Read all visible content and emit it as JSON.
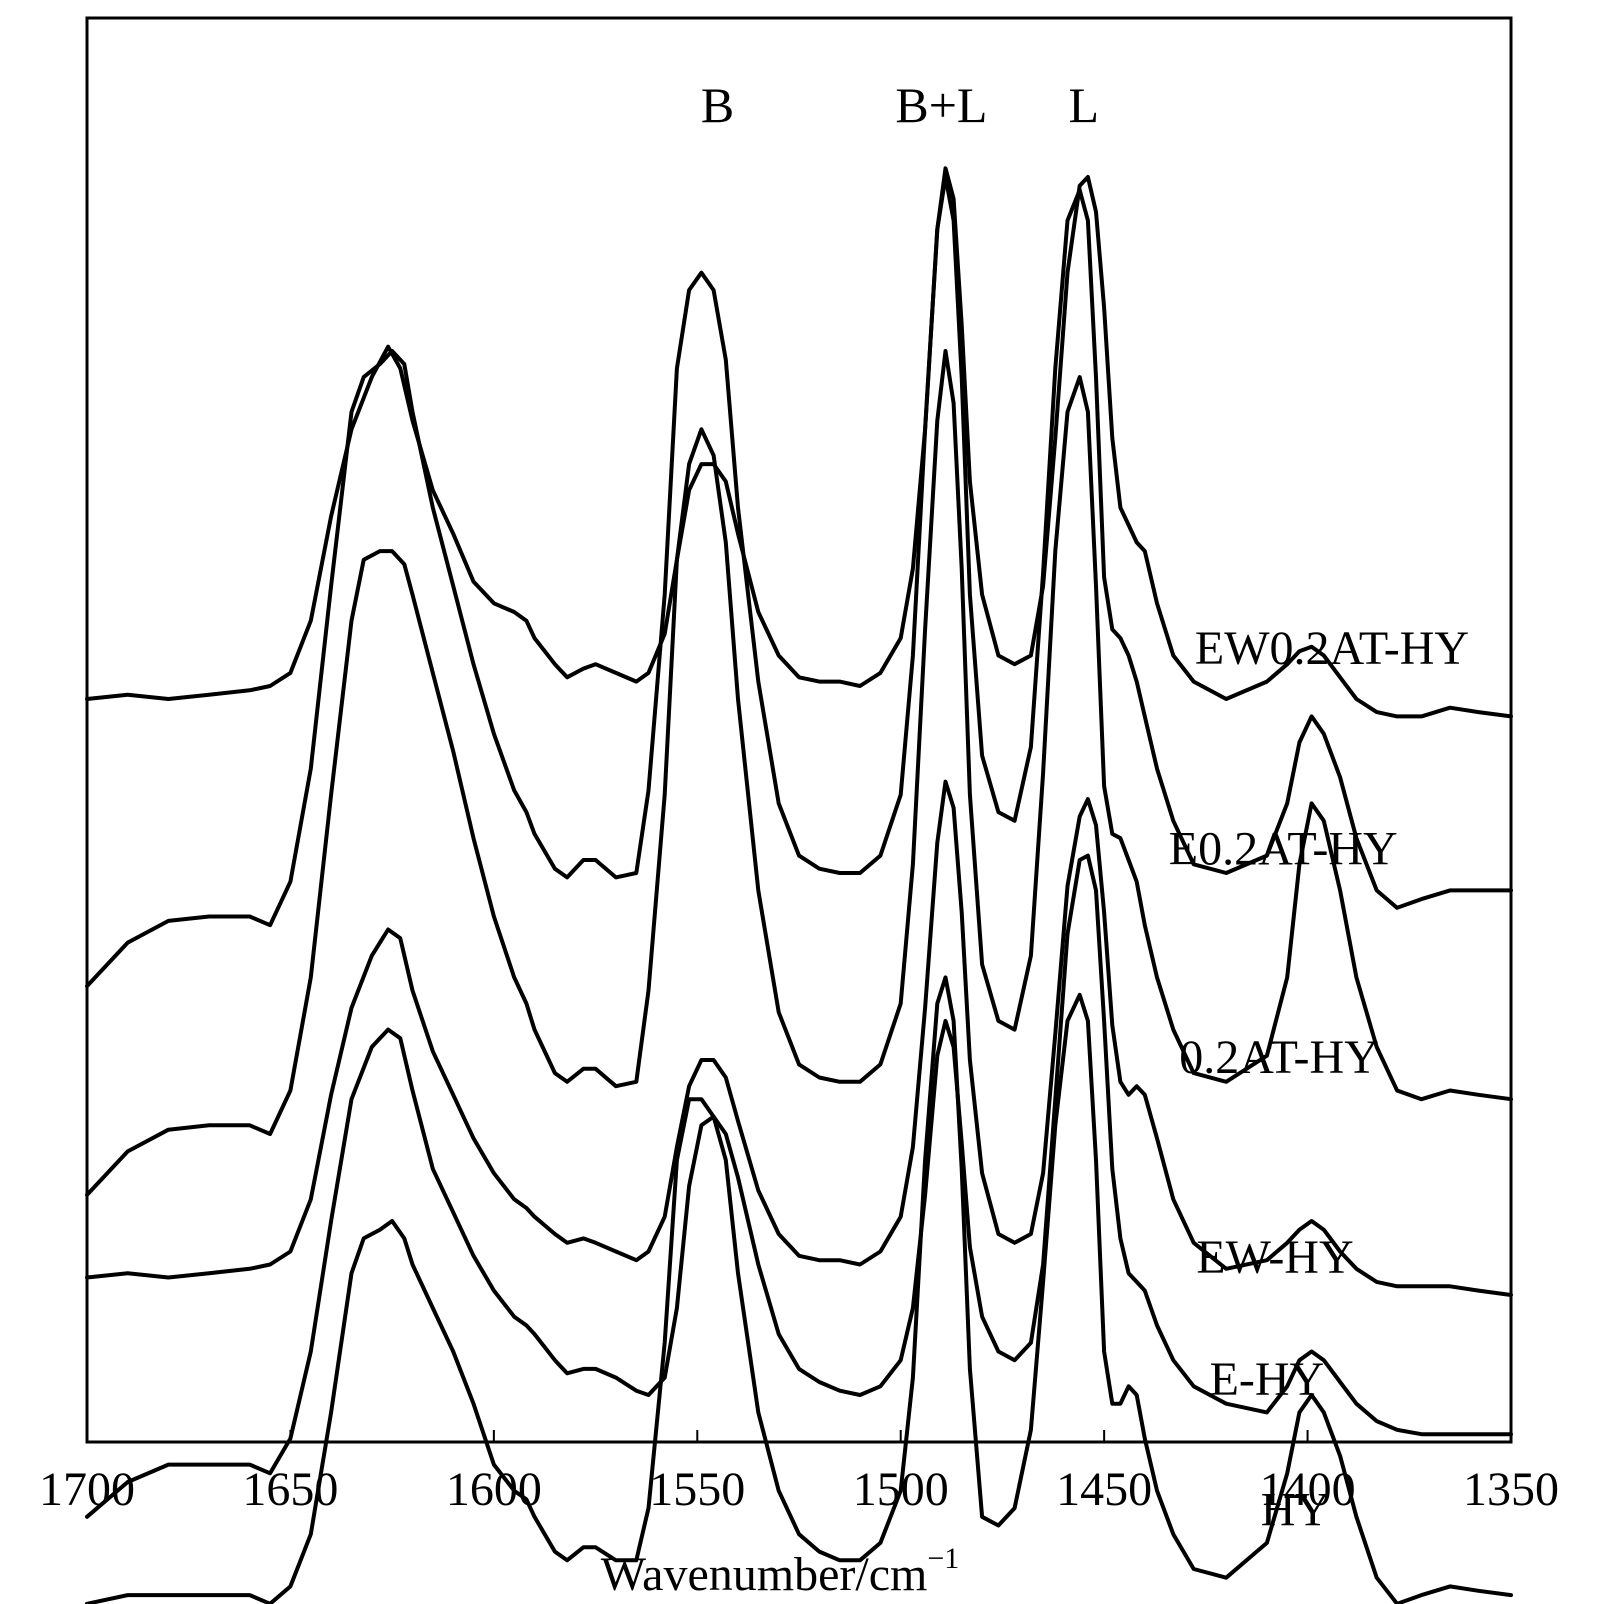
{
  "chart_data": {
    "type": "line",
    "xlabel": "Wavenumber/cm",
    "xlabel_superscript": "−1",
    "xlim": [
      1700,
      1350
    ],
    "x_reversed": true,
    "x_ticks": [
      1700,
      1650,
      1600,
      1550,
      1500,
      1450,
      1400,
      1350
    ],
    "ylabel": "",
    "y_axis_shown": false,
    "grid": false,
    "legend": "none",
    "line_color": "#000000",
    "y_units": "relative absorbance (stacked, arbitrary offsets)",
    "peak_labels": [
      {
        "text": "B",
        "x": 1545
      },
      {
        "text": "B+L",
        "x": 1490
      },
      {
        "text": "L",
        "x": 1455
      }
    ],
    "series": [
      {
        "name": "EW0.2AT-HY",
        "x": [
          1700,
          1690,
          1680,
          1670,
          1660,
          1655,
          1650,
          1645,
          1640,
          1635,
          1630,
          1626,
          1623,
          1620,
          1615,
          1610,
          1605,
          1600,
          1595,
          1592,
          1590,
          1585,
          1582,
          1578,
          1575,
          1570,
          1565,
          1562,
          1558,
          1555,
          1552,
          1549,
          1546,
          1543,
          1540,
          1535,
          1530,
          1525,
          1520,
          1515,
          1510,
          1505,
          1500,
          1497,
          1494,
          1491,
          1489,
          1487,
          1485,
          1483,
          1480,
          1476,
          1472,
          1468,
          1465,
          1462,
          1459,
          1456,
          1454,
          1452,
          1450,
          1448,
          1446,
          1444,
          1442,
          1440,
          1437,
          1433,
          1428,
          1420,
          1410,
          1405,
          1402,
          1399,
          1396,
          1392,
          1388,
          1383,
          1378,
          1372,
          1365,
          1358,
          1350
        ],
        "y": [
          10,
          11,
          10,
          11,
          12,
          13,
          16,
          28,
          52,
          72,
          84,
          91,
          86,
          74,
          58,
          48,
          37,
          32,
          30,
          28,
          24,
          18,
          15,
          17,
          18,
          16,
          14,
          16,
          25,
          42,
          58,
          64,
          64,
          60,
          48,
          30,
          20,
          15,
          14,
          14,
          13,
          16,
          24,
          40,
          72,
          118,
          132,
          125,
          96,
          60,
          34,
          20,
          18,
          20,
          36,
          70,
          108,
          128,
          130,
          122,
          100,
          70,
          54,
          50,
          46,
          44,
          32,
          20,
          14,
          10,
          14,
          18,
          21,
          22,
          20,
          15,
          10,
          7,
          6,
          6,
          8,
          7,
          6
        ]
      },
      {
        "name": "E0.2AT-HY",
        "x": [
          1700,
          1690,
          1680,
          1670,
          1660,
          1655,
          1650,
          1645,
          1640,
          1635,
          1632,
          1628,
          1625,
          1622,
          1620,
          1615,
          1610,
          1605,
          1600,
          1595,
          1592,
          1590,
          1585,
          1582,
          1578,
          1575,
          1570,
          1565,
          1562,
          1558,
          1555,
          1552,
          1549,
          1546,
          1543,
          1540,
          1535,
          1530,
          1525,
          1520,
          1515,
          1510,
          1505,
          1500,
          1497,
          1494,
          1491,
          1489,
          1487,
          1485,
          1483,
          1480,
          1476,
          1472,
          1468,
          1465,
          1462,
          1459,
          1456,
          1454,
          1452,
          1450,
          1448,
          1446,
          1444,
          1442,
          1440,
          1437,
          1433,
          1428,
          1420,
          1410,
          1405,
          1402,
          1399,
          1396,
          1392,
          1388,
          1383,
          1378,
          1372,
          1365,
          1358,
          1350
        ],
        "y": [
          -10,
          0,
          5,
          6,
          6,
          4,
          14,
          40,
          82,
          122,
          130,
          133,
          136,
          133,
          122,
          100,
          82,
          64,
          48,
          35,
          30,
          25,
          17,
          15,
          19,
          19,
          15,
          16,
          35,
          80,
          132,
          150,
          154,
          150,
          134,
          100,
          60,
          32,
          20,
          17,
          16,
          16,
          20,
          34,
          66,
          118,
          164,
          176,
          166,
          130,
          80,
          43,
          30,
          28,
          45,
          85,
          132,
          166,
          173,
          166,
          130,
          84,
          72,
          70,
          66,
          60,
          52,
          40,
          28,
          18,
          16,
          20,
          32,
          46,
          52,
          48,
          38,
          24,
          12,
          8,
          10,
          12,
          12,
          12
        ]
      },
      {
        "name": "0.2AT-HY",
        "x": [
          1700,
          1690,
          1680,
          1670,
          1660,
          1655,
          1650,
          1645,
          1640,
          1635,
          1632,
          1628,
          1625,
          1622,
          1620,
          1615,
          1610,
          1605,
          1600,
          1595,
          1592,
          1590,
          1585,
          1582,
          1578,
          1575,
          1570,
          1565,
          1562,
          1558,
          1555,
          1552,
          1549,
          1546,
          1543,
          1540,
          1535,
          1530,
          1525,
          1520,
          1515,
          1510,
          1505,
          1500,
          1497,
          1494,
          1491,
          1489,
          1487,
          1485,
          1483,
          1480,
          1476,
          1472,
          1468,
          1465,
          1462,
          1459,
          1456,
          1454,
          1452,
          1450,
          1448,
          1446,
          1444,
          1442,
          1440,
          1437,
          1433,
          1428,
          1420,
          1410,
          1405,
          1402,
          1399,
          1396,
          1392,
          1388,
          1383,
          1378,
          1372,
          1365,
          1358,
          1350
        ],
        "y": [
          -10,
          0,
          5,
          6,
          6,
          4,
          14,
          40,
          82,
          122,
          136,
          138,
          138,
          135,
          128,
          110,
          92,
          72,
          54,
          40,
          34,
          28,
          18,
          16,
          19,
          19,
          15,
          16,
          37,
          82,
          136,
          158,
          166,
          160,
          140,
          104,
          60,
          32,
          20,
          17,
          16,
          16,
          20,
          34,
          66,
          120,
          168,
          184,
          172,
          134,
          82,
          43,
          30,
          28,
          45,
          87,
          138,
          170,
          178,
          170,
          130,
          84,
          73,
          72,
          67,
          62,
          52,
          40,
          28,
          18,
          16,
          22,
          40,
          66,
          80,
          76,
          60,
          40,
          24,
          14,
          12,
          14,
          13,
          12
        ]
      },
      {
        "name": "EW-HY",
        "x": [
          1700,
          1690,
          1680,
          1670,
          1660,
          1655,
          1650,
          1645,
          1640,
          1635,
          1630,
          1626,
          1623,
          1620,
          1615,
          1610,
          1605,
          1600,
          1595,
          1592,
          1590,
          1585,
          1582,
          1578,
          1575,
          1570,
          1565,
          1562,
          1558,
          1555,
          1552,
          1549,
          1546,
          1543,
          1540,
          1535,
          1530,
          1525,
          1520,
          1515,
          1510,
          1505,
          1500,
          1497,
          1494,
          1491,
          1489,
          1487,
          1485,
          1483,
          1480,
          1476,
          1472,
          1468,
          1465,
          1462,
          1459,
          1456,
          1454,
          1452,
          1450,
          1448,
          1446,
          1444,
          1442,
          1440,
          1437,
          1433,
          1428,
          1420,
          1410,
          1405,
          1402,
          1399,
          1396,
          1392,
          1388,
          1383,
          1378,
          1372,
          1365,
          1358,
          1350
        ],
        "y": [
          10,
          11,
          10,
          11,
          12,
          13,
          16,
          28,
          52,
          72,
          84,
          90,
          88,
          76,
          62,
          52,
          42,
          34,
          28,
          26,
          24,
          20,
          18,
          19,
          18,
          16,
          14,
          16,
          24,
          40,
          54,
          60,
          60,
          56,
          46,
          30,
          20,
          15,
          14,
          14,
          13,
          16,
          24,
          40,
          72,
          110,
          124,
          118,
          94,
          60,
          34,
          20,
          18,
          20,
          34,
          66,
          100,
          116,
          120,
          114,
          94,
          68,
          55,
          52,
          54,
          52,
          42,
          28,
          18,
          12,
          14,
          18,
          21,
          23,
          21,
          16,
          12,
          9,
          8,
          8,
          8,
          7,
          6
        ]
      },
      {
        "name": "E-HY",
        "x": [
          1700,
          1690,
          1680,
          1670,
          1660,
          1655,
          1650,
          1645,
          1640,
          1635,
          1630,
          1626,
          1623,
          1620,
          1615,
          1610,
          1605,
          1600,
          1595,
          1592,
          1590,
          1585,
          1582,
          1578,
          1575,
          1570,
          1565,
          1562,
          1558,
          1555,
          1552,
          1549,
          1546,
          1543,
          1540,
          1535,
          1530,
          1525,
          1520,
          1515,
          1510,
          1505,
          1500,
          1497,
          1494,
          1491,
          1489,
          1487,
          1485,
          1483,
          1480,
          1476,
          1472,
          1468,
          1465,
          1462,
          1459,
          1456,
          1454,
          1452,
          1450,
          1448,
          1446,
          1444,
          1442,
          1440,
          1437,
          1433,
          1428,
          1420,
          1410,
          1405,
          1402,
          1399,
          1396,
          1392,
          1388,
          1383,
          1378,
          1372,
          1365,
          1358,
          1350
        ],
        "y": [
          -14,
          -6,
          -2,
          -2,
          -2,
          -4,
          4,
          24,
          54,
          82,
          94,
          98,
          96,
          84,
          66,
          56,
          46,
          38,
          32,
          30,
          28,
          22,
          19,
          20,
          20,
          18,
          15,
          14,
          18,
          34,
          62,
          76,
          78,
          74,
          64,
          44,
          28,
          20,
          17,
          15,
          14,
          16,
          22,
          34,
          60,
          92,
          100,
          94,
          72,
          48,
          32,
          24,
          22,
          26,
          44,
          82,
          120,
          137,
          138,
          130,
          100,
          66,
          50,
          42,
          40,
          38,
          30,
          22,
          16,
          12,
          10,
          16,
          22,
          24,
          22,
          17,
          12,
          8,
          6,
          5,
          5,
          5,
          5
        ]
      },
      {
        "name": "HY",
        "x": [
          1700,
          1690,
          1680,
          1670,
          1660,
          1655,
          1650,
          1645,
          1640,
          1635,
          1632,
          1628,
          1625,
          1622,
          1620,
          1615,
          1610,
          1605,
          1600,
          1595,
          1592,
          1590,
          1585,
          1582,
          1578,
          1575,
          1570,
          1565,
          1562,
          1558,
          1555,
          1552,
          1549,
          1546,
          1543,
          1540,
          1535,
          1530,
          1525,
          1520,
          1515,
          1510,
          1505,
          1500,
          1497,
          1494,
          1491,
          1489,
          1487,
          1485,
          1483,
          1480,
          1476,
          1472,
          1468,
          1465,
          1462,
          1459,
          1456,
          1454,
          1452,
          1450,
          1448,
          1446,
          1444,
          1442,
          1440,
          1437,
          1433,
          1428,
          1420,
          1410,
          1405,
          1402,
          1399,
          1396,
          1392,
          1388,
          1383,
          1378,
          1372,
          1365,
          1358,
          1350
        ],
        "y": [
          8,
          10,
          10,
          10,
          10,
          8,
          12,
          24,
          52,
          84,
          92,
          94,
          96,
          92,
          86,
          76,
          66,
          54,
          40,
          34,
          32,
          28,
          20,
          18,
          21,
          21,
          18,
          18,
          30,
          68,
          110,
          124,
          124,
          120,
          110,
          84,
          52,
          34,
          24,
          20,
          18,
          18,
          22,
          34,
          60,
          110,
          146,
          152,
          142,
          108,
          62,
          28,
          26,
          30,
          48,
          82,
          118,
          142,
          148,
          142,
          110,
          66,
          54,
          54,
          58,
          56,
          46,
          34,
          24,
          16,
          14,
          22,
          38,
          52,
          56,
          52,
          42,
          28,
          14,
          8,
          10,
          12,
          11,
          10
        ]
      }
    ],
    "series_offsets": [
      150,
      104,
      56,
      17,
      -14,
      -56
    ],
    "label_positions": [
      {
        "x": 1394,
        "y": 168
      },
      {
        "x": 1406,
        "y": 122
      },
      {
        "x": 1407,
        "y": 74
      },
      {
        "x": 1408,
        "y": 28
      },
      {
        "x": 1410,
        "y": 0
      },
      {
        "x": 1403,
        "y": -30
      }
    ]
  }
}
